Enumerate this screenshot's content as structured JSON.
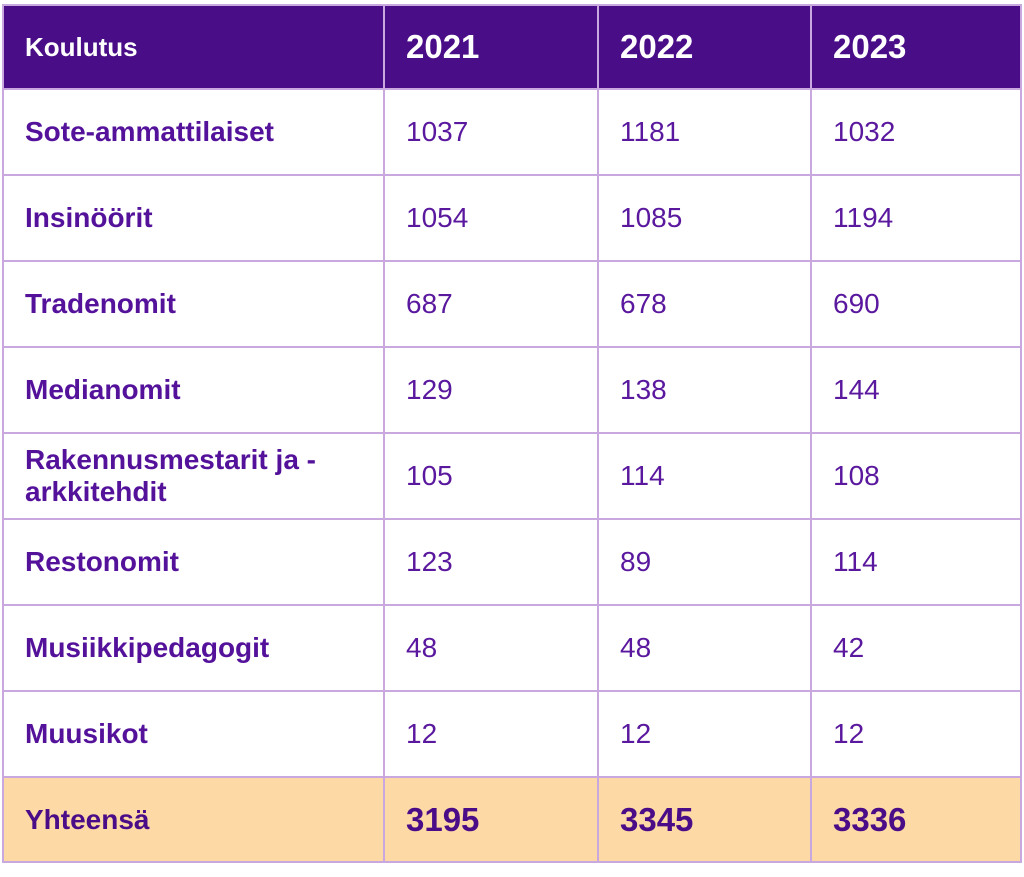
{
  "colors": {
    "header_bg": "#490d87",
    "header_text": "#ffffff",
    "body_text": "#54129b",
    "border": "#c9a7df",
    "total_row_bg": "#fdd9a5",
    "total_text": "#4a0d87"
  },
  "table": {
    "header": {
      "label": "Koulutus",
      "years": [
        "2021",
        "2022",
        "2023"
      ]
    },
    "rows": [
      {
        "label": "Sote-ammattilaiset",
        "values": [
          "1037",
          "1181",
          "1032"
        ]
      },
      {
        "label": "Insinöörit",
        "values": [
          "1054",
          "1085",
          "1194"
        ]
      },
      {
        "label": "Tradenomit",
        "values": [
          "687",
          "678",
          "690"
        ]
      },
      {
        "label": "Medianomit",
        "values": [
          "129",
          "138",
          "144"
        ]
      },
      {
        "label": "Rakennusmestarit ja -arkkitehdit",
        "values": [
          "105",
          "114",
          "108"
        ]
      },
      {
        "label": "Restonomit",
        "values": [
          "123",
          "89",
          "114"
        ]
      },
      {
        "label": "Musiikkipedagogit",
        "values": [
          "48",
          "48",
          "42"
        ]
      },
      {
        "label": "Muusikot",
        "values": [
          "12",
          "12",
          "12"
        ]
      }
    ],
    "total": {
      "label": "Yhteensä",
      "values": [
        "3195",
        "3345",
        "3336"
      ]
    }
  },
  "chart_data": {
    "type": "table",
    "columns": [
      "Koulutus",
      "2021",
      "2022",
      "2023"
    ],
    "rows": [
      [
        "Sote-ammattilaiset",
        1037,
        1181,
        1032
      ],
      [
        "Insinöörit",
        1054,
        1085,
        1194
      ],
      [
        "Tradenomit",
        687,
        678,
        690
      ],
      [
        "Medianomit",
        129,
        138,
        144
      ],
      [
        "Rakennusmestarit ja -arkkitehdit",
        105,
        114,
        108
      ],
      [
        "Restonomit",
        123,
        89,
        114
      ],
      [
        "Musiikkipedagogit",
        48,
        48,
        42
      ],
      [
        "Muusikot",
        12,
        12,
        12
      ]
    ],
    "total_row": [
      "Yhteensä",
      3195,
      3345,
      3336
    ],
    "title": "",
    "legend": "none",
    "grid": "on"
  }
}
